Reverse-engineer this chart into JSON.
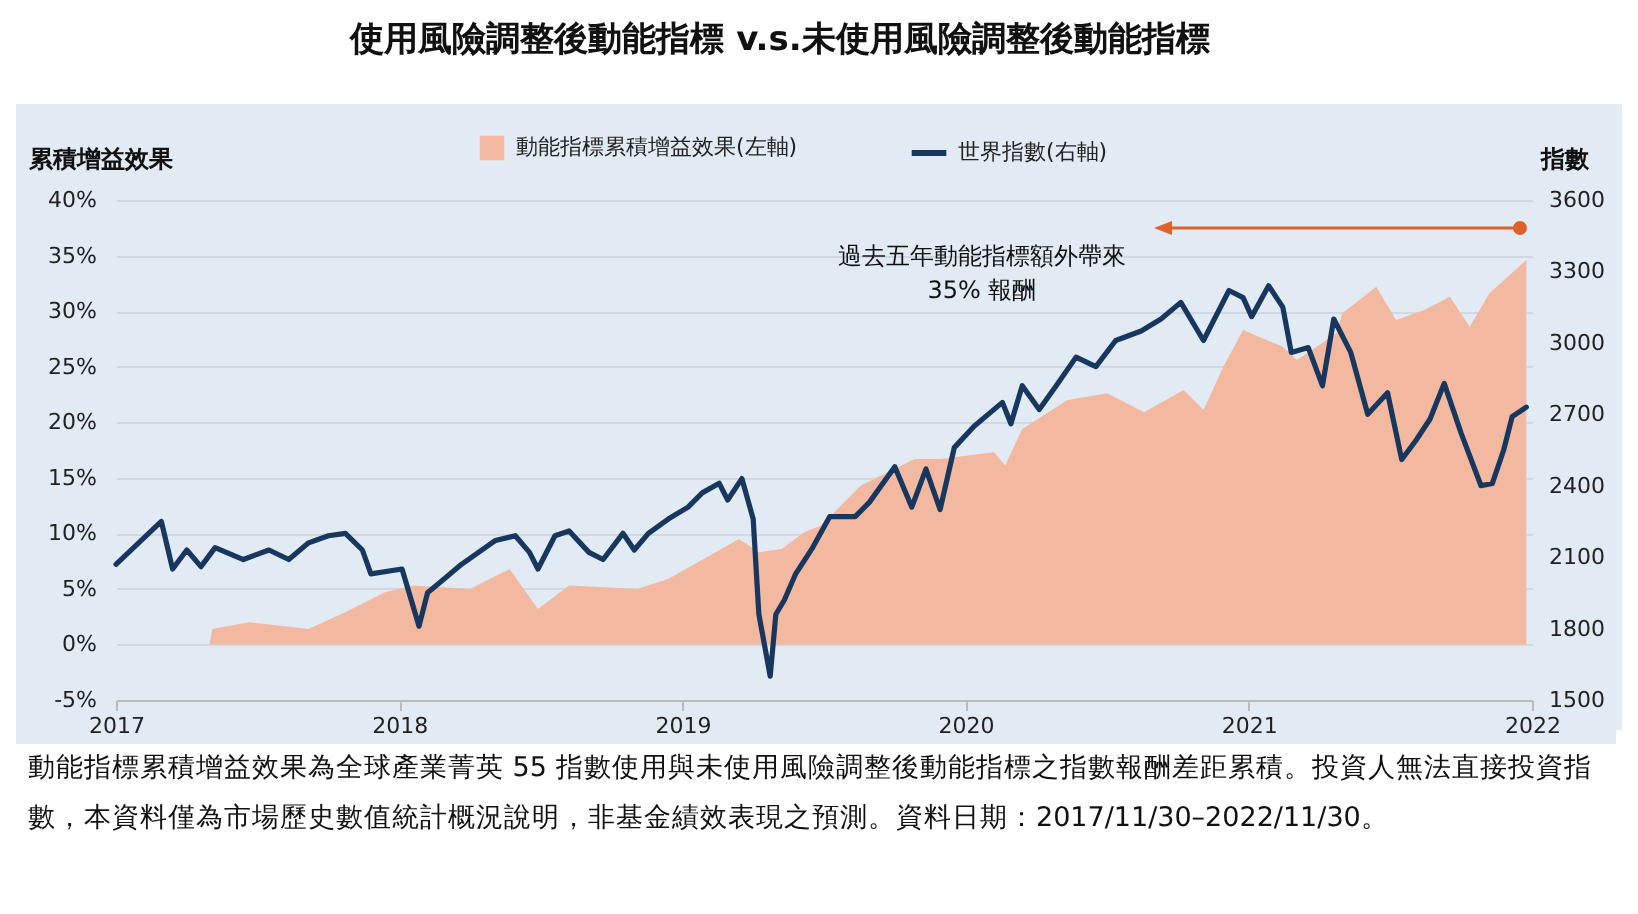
{
  "chart_data": {
    "type": "area",
    "title": "使用風險調整後動能指標 v.s.未使用風險調整後動能指標",
    "xlabel": null,
    "ylabel": "累積增益效果",
    "y2label": "指數",
    "xlim": [
      2017,
      2022
    ],
    "xticks": [
      2017,
      2018,
      2019,
      2020,
      2021,
      2022
    ],
    "ylim": [
      -5,
      40
    ],
    "yticks": [
      {
        "value": -5,
        "label": "-5%"
      },
      {
        "value": 0,
        "label": "0%"
      },
      {
        "value": 5,
        "label": "5%"
      },
      {
        "value": 10,
        "label": "10%"
      },
      {
        "value": 15,
        "label": "15%"
      },
      {
        "value": 20,
        "label": "20%"
      },
      {
        "value": 25,
        "label": "25%"
      },
      {
        "value": 30,
        "label": "30%"
      },
      {
        "value": 35,
        "label": "35%"
      },
      {
        "value": 40,
        "label": "40%"
      }
    ],
    "y2lim": [
      1500,
      3600
    ],
    "y2ticks": [
      1500,
      1800,
      2100,
      2400,
      2700,
      3000,
      3300,
      3600
    ],
    "grid": "y",
    "legend": "top",
    "series": [
      {
        "name": "動能指標累積增益效果(左軸)",
        "color": "#f2b8a0",
        "x": [
          2017.0,
          2017.2,
          2017.33,
          2017.34,
          2017.47,
          2017.68,
          2017.81,
          2017.95,
          2018.05,
          2018.25,
          2018.39,
          2018.49,
          2018.6,
          2018.84,
          2018.95,
          2019.2,
          2019.27,
          2019.35,
          2019.43,
          2019.49,
          2019.63,
          2019.82,
          2019.91,
          2020.1,
          2020.14,
          2020.2,
          2020.36,
          2020.5,
          2020.63,
          2020.77,
          2020.84,
          2020.91,
          2020.98,
          2021.12,
          2021.17,
          2021.31,
          2021.33,
          2021.45,
          2021.52,
          2021.62,
          2021.71,
          2021.78,
          2021.85,
          2021.98
        ],
        "values": [
          0,
          0,
          0,
          1.4,
          2.0,
          1.4,
          2.9,
          4.7,
          5.3,
          5.0,
          6.8,
          3.2,
          5.3,
          5.0,
          5.9,
          9.5,
          8.3,
          8.6,
          10.1,
          10.7,
          14.3,
          16.7,
          16.7,
          17.3,
          16.1,
          19.4,
          22.0,
          22.6,
          20.9,
          22.9,
          21.1,
          25.0,
          28.3,
          26.8,
          25.6,
          28.0,
          29.8,
          32.2,
          29.2,
          30.1,
          31.3,
          28.6,
          31.6,
          34.6
        ]
      },
      {
        "name": "世界指數(右軸)",
        "type": "line",
        "axis": "y2",
        "color": "#17375e",
        "x": [
          2017.0,
          2017.16,
          2017.2,
          2017.25,
          2017.3,
          2017.35,
          2017.45,
          2017.54,
          2017.61,
          2017.68,
          2017.75,
          2017.81,
          2017.87,
          2017.9,
          2018.01,
          2018.07,
          2018.1,
          2018.15,
          2018.22,
          2018.34,
          2018.41,
          2018.46,
          2018.49,
          2018.55,
          2018.6,
          2018.67,
          2018.72,
          2018.79,
          2018.83,
          2018.88,
          2018.95,
          2019.02,
          2019.07,
          2019.13,
          2019.16,
          2019.21,
          2019.25,
          2019.27,
          2019.31,
          2019.33,
          2019.36,
          2019.4,
          2019.46,
          2019.52,
          2019.61,
          2019.66,
          2019.75,
          2019.81,
          2019.86,
          2019.91,
          2019.96,
          2020.03,
          2020.13,
          2020.16,
          2020.2,
          2020.26,
          2020.32,
          2020.39,
          2020.46,
          2020.53,
          2020.62,
          2020.69,
          2020.76,
          2020.84,
          2020.93,
          2020.98,
          2021.01,
          2021.07,
          2021.12,
          2021.15,
          2021.21,
          2021.26,
          2021.3,
          2021.36,
          2021.42,
          2021.49,
          2021.54,
          2021.59,
          2021.64,
          2021.69,
          2021.75,
          2021.82,
          2021.86,
          2021.9,
          2021.93,
          2021.98
        ],
        "values": [
          2070,
          2250,
          2050,
          2130,
          2060,
          2140,
          2090,
          2130,
          2090,
          2160,
          2190,
          2200,
          2130,
          2030,
          2050,
          1810,
          1950,
          2000,
          2070,
          2170,
          2190,
          2120,
          2050,
          2190,
          2210,
          2120,
          2090,
          2200,
          2130,
          2200,
          2260,
          2310,
          2370,
          2410,
          2340,
          2430,
          2260,
          1860,
          1600,
          1860,
          1920,
          2030,
          2140,
          2270,
          2270,
          2330,
          2480,
          2310,
          2470,
          2300,
          2560,
          2650,
          2750,
          2660,
          2820,
          2720,
          2820,
          2940,
          2900,
          3010,
          3050,
          3100,
          3170,
          3010,
          3220,
          3190,
          3110,
          3240,
          3150,
          2960,
          2980,
          2820,
          3100,
          2960,
          2700,
          2790,
          2510,
          2590,
          2680,
          2830,
          2620,
          2400,
          2410,
          2550,
          2690,
          2730
        ]
      }
    ],
    "annotations": [
      "過去五年動能指標額外帶來\n35% 報酬",
      "動能指標累積增益效果為全球產業菁英 55 指數使用與未使用風險調整後動能指標之指數報酬差距累積。投資人無法直接投資指數，本資料僅為市場歷史數值統計概況說明，非基金績效表現之預測。資料日期：2017/11/30–2022/11/30。"
    ]
  }
}
